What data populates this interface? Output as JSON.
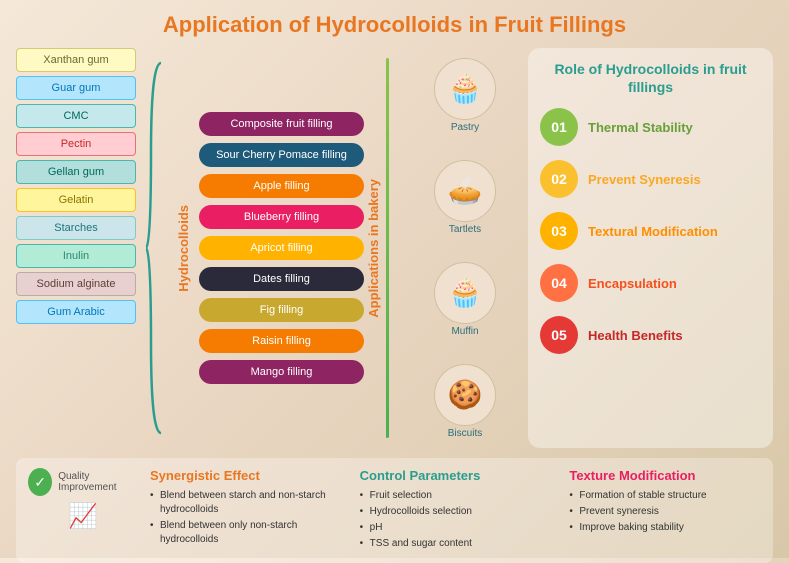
{
  "title": "Application of Hydrocolloids in Fruit Fillings",
  "hydrocolloids_label": "Hydrocolloids",
  "hydrocolloids": [
    {
      "label": "Xanthan gum",
      "bg": "#fff9c4",
      "border": "#d4c976",
      "color": "#6b6b2e"
    },
    {
      "label": "Guar gum",
      "bg": "#b3e5fc",
      "border": "#4fc3f7",
      "color": "#0277bd"
    },
    {
      "label": "CMC",
      "bg": "#c5e8ed",
      "border": "#4db6ac",
      "color": "#00695c"
    },
    {
      "label": "Pectin",
      "bg": "#ffcdd2",
      "border": "#e57373",
      "color": "#c62828"
    },
    {
      "label": "Gellan gum",
      "bg": "#b2dfdb",
      "border": "#4db6ac",
      "color": "#00695c"
    },
    {
      "label": "Gelatin",
      "bg": "#fff59d",
      "border": "#fbc02d",
      "color": "#8a7500"
    },
    {
      "label": "Starches",
      "bg": "#cce5ea",
      "border": "#80cbc4",
      "color": "#1a7580"
    },
    {
      "label": "Inulin",
      "bg": "#b2ebd6",
      "border": "#4db6ac",
      "color": "#2a8a6e"
    },
    {
      "label": "Sodium alginate",
      "bg": "#e8d0d0",
      "border": "#bcaaa4",
      "color": "#5d4037"
    },
    {
      "label": "Gum Arabic",
      "bg": "#b3e5fc",
      "border": "#4fc3f7",
      "color": "#0277bd"
    }
  ],
  "fillings": [
    {
      "label": "Composite fruit filling",
      "bg": "#8e2462"
    },
    {
      "label": "Sour Cherry Pomace filling",
      "bg": "#1e5a7a"
    },
    {
      "label": "Apple filling",
      "bg": "#f57c00"
    },
    {
      "label": "Blueberry filling",
      "bg": "#e91e63"
    },
    {
      "label": "Apricot filling",
      "bg": "#ffb300"
    },
    {
      "label": "Dates filling",
      "bg": "#2a2a3a"
    },
    {
      "label": "Fig filling",
      "bg": "#c9a830"
    },
    {
      "label": "Raisin filling",
      "bg": "#f57c00"
    },
    {
      "label": "Mango filling",
      "bg": "#8e2462"
    }
  ],
  "applications_label": "Applications in bakery",
  "bakery": [
    {
      "label": "Pastry",
      "emoji": "🧁"
    },
    {
      "label": "Tartlets",
      "emoji": "🥧"
    },
    {
      "label": "Muffin",
      "emoji": "🧁"
    },
    {
      "label": "Biscuits",
      "emoji": "🍪"
    }
  ],
  "role_title": "Role of Hydrocolloids in fruit fillings",
  "roles": [
    {
      "num": "01",
      "label": "Thermal Stability",
      "bg": "#8bc34a",
      "color": "#689f38"
    },
    {
      "num": "02",
      "label": "Prevent Syneresis",
      "bg": "#fbc02d",
      "color": "#f9a825"
    },
    {
      "num": "03",
      "label": "Textural Modification",
      "bg": "#ffb300",
      "color": "#ff8f00"
    },
    {
      "num": "04",
      "label": "Encapsulation",
      "bg": "#ff7043",
      "color": "#f4511e"
    },
    {
      "num": "05",
      "label": "Health Benefits",
      "bg": "#e53935",
      "color": "#c62828"
    }
  ],
  "quality_label": "Quality Improvement",
  "bottom_sections": [
    {
      "title": "Synergistic Effect",
      "color": "#e87722",
      "items": [
        "Blend between starch and non-starch hydrocolloids",
        "Blend between only non-starch hydrocolloids"
      ]
    },
    {
      "title": "Control Parameters",
      "color": "#2a9d8f",
      "items": [
        "Fruit selection",
        "Hydrocolloids selection",
        "pH",
        "TSS and sugar content"
      ]
    },
    {
      "title": "Texture Modification",
      "color": "#e91e63",
      "items": [
        "Formation of stable structure",
        "Prevent syneresis",
        "Improve baking stability"
      ]
    }
  ]
}
